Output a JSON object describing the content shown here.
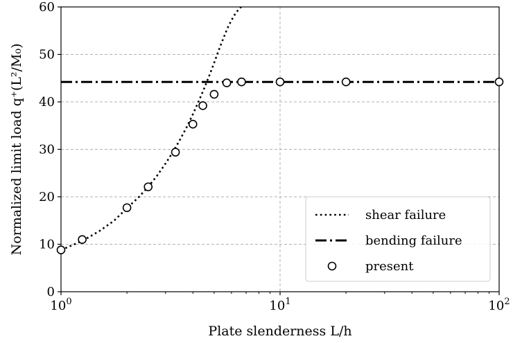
{
  "chart_data": {
    "type": "line",
    "title": "",
    "xscale": "log",
    "xlabel": "Plate slenderness L/h",
    "ylabel": "Normalized limit load q⁺(L²/M₀)",
    "xlim": [
      1,
      100
    ],
    "ylim": [
      0,
      60
    ],
    "grid": true,
    "legend_position": "bottom-right",
    "x_ticks": [
      {
        "value": 1,
        "base": "10",
        "exp": "0"
      },
      {
        "value": 10,
        "base": "10",
        "exp": "1"
      },
      {
        "value": 100,
        "base": "10",
        "exp": "2"
      }
    ],
    "y_ticks": [
      0,
      10,
      20,
      30,
      40,
      50,
      60
    ],
    "series": [
      {
        "name": "shear failure",
        "style": "dotted",
        "color": "#000000",
        "x": [
          1.0,
          1.25,
          1.5,
          1.75,
          2.0,
          2.25,
          2.5,
          2.75,
          3.0,
          3.25,
          3.5,
          3.75,
          4.0,
          4.25,
          4.5,
          4.75,
          5.0,
          5.25,
          5.5,
          5.75,
          6.0,
          6.25,
          6.5,
          6.75
        ],
        "y": [
          8.8,
          10.7,
          12.8,
          15.0,
          17.6,
          19.8,
          22.1,
          24.5,
          27.0,
          29.5,
          32.1,
          34.7,
          37.4,
          40.1,
          42.8,
          45.5,
          48.2,
          50.9,
          53.3,
          55.5,
          57.2,
          58.6,
          59.6,
          60.3
        ]
      },
      {
        "name": "bending failure",
        "style": "dash-dot",
        "color": "#000000",
        "x": [
          1,
          100
        ],
        "y": [
          44.2,
          44.2
        ]
      },
      {
        "name": "present",
        "style": "markers",
        "color": "#000000",
        "x": [
          1.0,
          1.25,
          2.0,
          2.5,
          3.33,
          4.0,
          4.44,
          5.0,
          5.71,
          6.67,
          10.0,
          20.0,
          100.0
        ],
        "y": [
          8.8,
          11.0,
          17.7,
          22.1,
          29.4,
          35.3,
          39.2,
          41.6,
          44.0,
          44.2,
          44.2,
          44.2,
          44.2
        ]
      }
    ]
  }
}
